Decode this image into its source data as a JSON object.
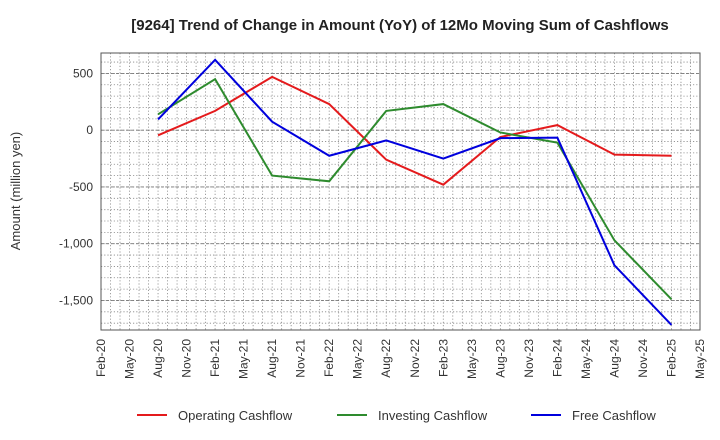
{
  "chart_data": {
    "type": "line",
    "title": "[9264]  Trend of Change in Amount (YoY) of 12Mo Moving Sum of Cashflows",
    "xlabel": "",
    "ylabel": "Amount (million yen)",
    "categories": [
      "Feb-20",
      "May-20",
      "Aug-20",
      "Nov-20",
      "Feb-21",
      "May-21",
      "Aug-21",
      "Nov-21",
      "Feb-22",
      "May-22",
      "Aug-22",
      "Nov-22",
      "Feb-23",
      "May-23",
      "Aug-23",
      "Nov-23",
      "Feb-24",
      "May-24",
      "Aug-24",
      "Nov-24",
      "Feb-25",
      "May-25"
    ],
    "ylim": [
      -1760,
      680
    ],
    "yticks": [
      500,
      0,
      -500,
      -1000,
      -1500
    ],
    "ytick_labels": [
      "500",
      "0",
      "-500",
      "-1,000",
      "-1,500"
    ],
    "grid": true,
    "legend_position": "bottom",
    "series": [
      {
        "name": "Operating Cashflow",
        "color": "#e41a1c",
        "points": [
          {
            "x": "Aug-20",
            "y": -45
          },
          {
            "x": "Feb-21",
            "y": 170
          },
          {
            "x": "Aug-21",
            "y": 470
          },
          {
            "x": "Feb-22",
            "y": 230
          },
          {
            "x": "Aug-22",
            "y": -260
          },
          {
            "x": "Feb-23",
            "y": -480
          },
          {
            "x": "Aug-23",
            "y": -60
          },
          {
            "x": "Feb-24",
            "y": 45
          },
          {
            "x": "Aug-24",
            "y": -215
          },
          {
            "x": "Feb-25",
            "y": -225
          }
        ]
      },
      {
        "name": "Investing Cashflow",
        "color": "#2e8b2e",
        "points": [
          {
            "x": "Aug-20",
            "y": 140
          },
          {
            "x": "Feb-21",
            "y": 450
          },
          {
            "x": "Aug-21",
            "y": -400
          },
          {
            "x": "Feb-22",
            "y": -450
          },
          {
            "x": "Aug-22",
            "y": 170
          },
          {
            "x": "Feb-23",
            "y": 230
          },
          {
            "x": "Aug-23",
            "y": -20
          },
          {
            "x": "Feb-24",
            "y": -110
          },
          {
            "x": "Aug-24",
            "y": -970
          },
          {
            "x": "Feb-25",
            "y": -1490
          }
        ]
      },
      {
        "name": "Free Cashflow",
        "color": "#0000dd",
        "points": [
          {
            "x": "Aug-20",
            "y": 95
          },
          {
            "x": "Feb-21",
            "y": 620
          },
          {
            "x": "Aug-21",
            "y": 75
          },
          {
            "x": "Feb-22",
            "y": -225
          },
          {
            "x": "Aug-22",
            "y": -90
          },
          {
            "x": "Feb-23",
            "y": -250
          },
          {
            "x": "Aug-23",
            "y": -70
          },
          {
            "x": "Feb-24",
            "y": -65
          },
          {
            "x": "Aug-24",
            "y": -1190
          },
          {
            "x": "Feb-25",
            "y": -1715
          }
        ]
      }
    ]
  }
}
